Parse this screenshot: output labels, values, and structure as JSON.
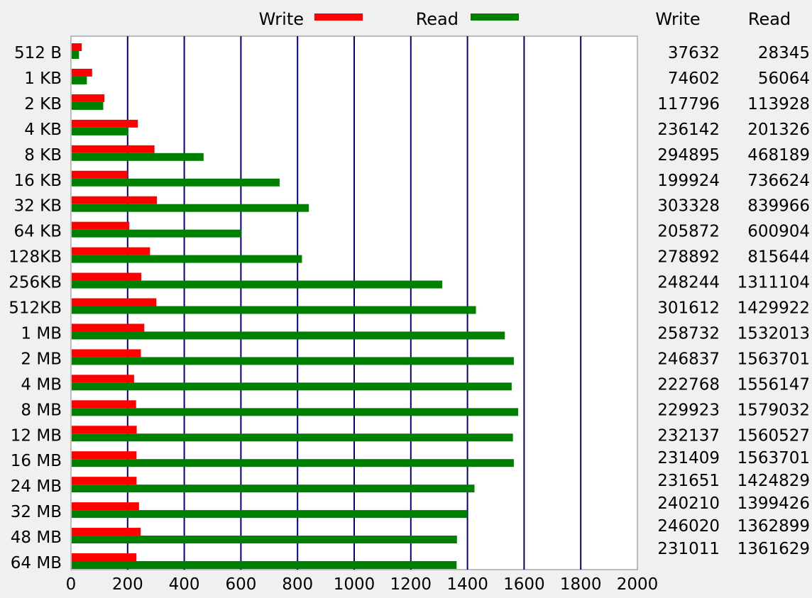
{
  "chart_data": {
    "type": "bar",
    "orientation": "horizontal",
    "categories": [
      "512 B",
      "1 KB",
      "2 KB",
      "4 KB",
      "8 KB",
      "16 KB",
      "32 KB",
      "64 KB",
      "128KB",
      "256KB",
      "512KB",
      "1 MB",
      "2 MB",
      "4 MB",
      "8 MB",
      "12 MB",
      "16 MB",
      "24 MB",
      "32 MB",
      "48 MB",
      "64 MB"
    ],
    "series": [
      {
        "name": "Write",
        "color": "#ff0000",
        "values": [
          37632,
          74602,
          117796,
          236142,
          294895,
          199924,
          303328,
          205872,
          278892,
          248244,
          301612,
          258732,
          246837,
          222768,
          229923,
          232137,
          231409,
          231651,
          240210,
          246020,
          231011
        ]
      },
      {
        "name": "Read",
        "color": "#008000",
        "values": [
          28345,
          56064,
          113928,
          201326,
          468189,
          736624,
          839966,
          600904,
          815644,
          1311104,
          1429922,
          1532013,
          1563701,
          1556147,
          1579032,
          1560527,
          1563701,
          1424829,
          1399426,
          1362899,
          1361629
        ]
      }
    ],
    "bar_scale_divisor": 1000,
    "xlim": [
      0,
      2000
    ],
    "x_ticks": [
      0,
      200,
      400,
      600,
      800,
      1000,
      1200,
      1400,
      1600,
      1800,
      2000
    ],
    "grid": true,
    "grid_color": "#000080",
    "legend_position": "top",
    "table_headers": [
      "Write",
      "Read"
    ]
  }
}
